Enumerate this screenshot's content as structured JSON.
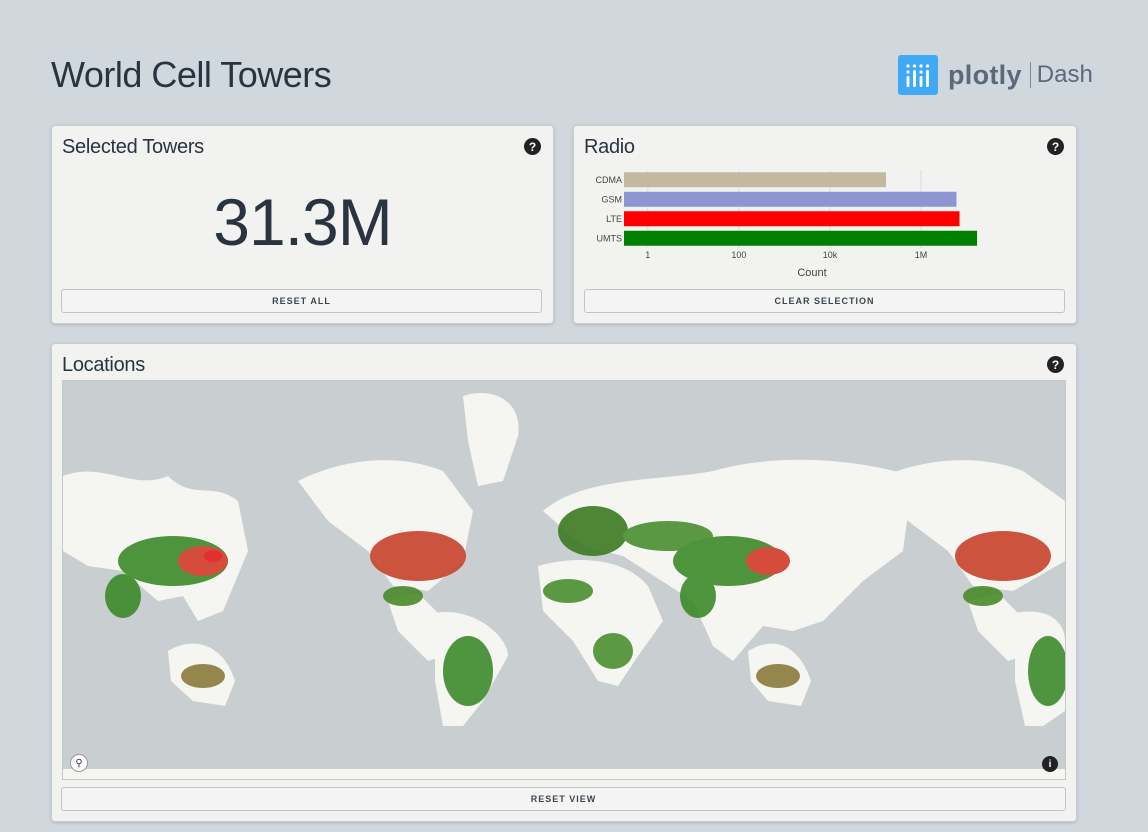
{
  "header": {
    "title": "World Cell Towers",
    "logo_word": "plotly",
    "logo_product": "Dash"
  },
  "selected_towers": {
    "title": "Selected Towers",
    "value": "31.3M",
    "reset_label": "RESET ALL"
  },
  "radio": {
    "title": "Radio",
    "clear_label": "CLEAR SELECTION",
    "chart_data": {
      "type": "bar",
      "orientation": "horizontal",
      "categories": [
        "CDMA",
        "GSM",
        "LTE",
        "UMTS"
      ],
      "values": [
        170000,
        6000000,
        7000000,
        17000000
      ],
      "colors": [
        "#c3b9a0",
        "#8d96d0",
        "#ff0000",
        "#008000"
      ],
      "xlabel": "Count",
      "xscale": "log",
      "xlim": [
        0.3,
        40000000
      ],
      "xticks": [
        1,
        100,
        10000,
        1000000
      ],
      "xtick_labels": [
        "1",
        "100",
        "10k",
        "1M"
      ],
      "grid": true
    }
  },
  "locations": {
    "title": "Locations",
    "reset_label": "RESET VIEW"
  },
  "icons": {
    "help": "question-circle-icon",
    "zoom": "magnifier-icon",
    "info": "info-icon"
  },
  "colors": {
    "background": "#d0d8de",
    "card": "#f2f2f0",
    "text": "#2a3440",
    "accent": "#3fa9f5",
    "lte": "#ff0000",
    "umts": "#008000"
  }
}
